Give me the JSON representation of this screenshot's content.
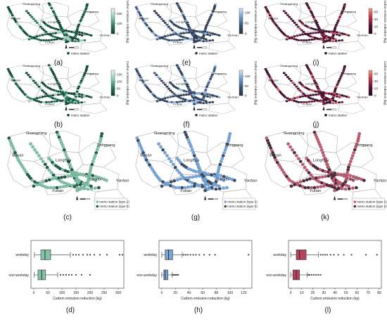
{
  "regions": [
    "Guangming",
    "Baoan",
    "Longhua",
    "Longgang",
    "Futian",
    "Luohu",
    "Yantian"
  ],
  "legend_station": "metro station",
  "legend_type1": "metro station (type 1)",
  "legend_type2": "metro station (type 2)",
  "colorbar_label": "Carbon emission reduction (kg)",
  "map_panels": [
    {
      "id": "a",
      "label": "(a)",
      "palette": "green",
      "cb_ticks": [
        "0",
        "100",
        "200"
      ],
      "cb_max": 250
    },
    {
      "id": "e",
      "label": "(e)",
      "palette": "blue",
      "cb_ticks": [
        "0",
        "50",
        "100"
      ],
      "cb_max": 120
    },
    {
      "id": "i",
      "label": "(i)",
      "palette": "red",
      "cb_ticks": [
        "0",
        "20",
        "40",
        "60"
      ],
      "cb_max": 70
    },
    {
      "id": "b",
      "label": "(b)",
      "palette": "green",
      "cb_ticks": [
        "0",
        "50",
        "100",
        "150"
      ],
      "cb_max": 180
    },
    {
      "id": "f",
      "label": "(f)",
      "palette": "blue",
      "cb_ticks": [
        "0",
        "50",
        "100"
      ],
      "cb_max": 130
    },
    {
      "id": "j",
      "label": "(j)",
      "palette": "red",
      "cb_ticks": [
        "0",
        "20",
        "40",
        "60"
      ],
      "cb_max": 70
    }
  ],
  "type_panels": [
    {
      "id": "c",
      "label": "(c)",
      "palette": "green"
    },
    {
      "id": "g",
      "label": "(g)",
      "palette": "blue"
    },
    {
      "id": "k",
      "label": "(k)",
      "palette": "red"
    }
  ],
  "chart_data": [
    {
      "type": "box",
      "panel": "(d)",
      "xlabel": "Carbon emission reduction (kg)",
      "categories": [
        "workday",
        "non-workday"
      ],
      "xticks": [
        0,
        50,
        100,
        150,
        200,
        250,
        300
      ],
      "xlim": [
        -10,
        320
      ],
      "color": "#86c2a8",
      "boxes": [
        {
          "name": "workday",
          "whislo": 2,
          "q1": 25,
          "med": 40,
          "q3": 60,
          "whishi": 130,
          "fliers": [
            140,
            150,
            160,
            175,
            190,
            200,
            215,
            235,
            260,
            305,
            315
          ]
        },
        {
          "name": "non-workday",
          "whislo": 1,
          "q1": 15,
          "med": 28,
          "q3": 42,
          "whishi": 85,
          "fliers": [
            95,
            105,
            115,
            125,
            135,
            150,
            170,
            200
          ]
        }
      ]
    },
    {
      "type": "box",
      "panel": "(h)",
      "xlabel": "Carbon emission reduction (kg)",
      "categories": [
        "workday",
        "non-workday"
      ],
      "xticks": [
        0,
        20,
        40,
        60,
        80,
        100,
        120
      ],
      "xlim": [
        -4,
        132
      ],
      "color": "#7aa6d6",
      "boxes": [
        {
          "name": "workday",
          "whislo": 0,
          "q1": 5,
          "med": 10,
          "q3": 16,
          "whishi": 30,
          "fliers": [
            32,
            35,
            38,
            42,
            46,
            50,
            55,
            62,
            70,
            78,
            127
          ]
        },
        {
          "name": "non-workday",
          "whislo": 0,
          "q1": 3,
          "med": 5,
          "q3": 9,
          "whishi": 15,
          "fliers": [
            16,
            18,
            20,
            22,
            24
          ]
        }
      ]
    },
    {
      "type": "box",
      "panel": "(l)",
      "xlabel": "Carbon emission reduction (kg)",
      "categories": [
        "workday",
        "non-workday"
      ],
      "xticks": [
        0,
        10,
        20,
        30,
        40,
        50,
        60,
        70,
        80
      ],
      "xlim": [
        -2,
        82
      ],
      "color": "#b7445d",
      "boxes": [
        {
          "name": "workday",
          "whislo": 0,
          "q1": 5,
          "med": 8,
          "q3": 14,
          "whishi": 25,
          "fliers": [
            27,
            29,
            31,
            33,
            36,
            39,
            43,
            48,
            55,
            68,
            78
          ]
        },
        {
          "name": "non-workday",
          "whislo": 0,
          "q1": 2,
          "med": 5,
          "q3": 8,
          "whishi": 15,
          "fliers": [
            16,
            17,
            19,
            21,
            23,
            25,
            27
          ]
        }
      ]
    }
  ]
}
